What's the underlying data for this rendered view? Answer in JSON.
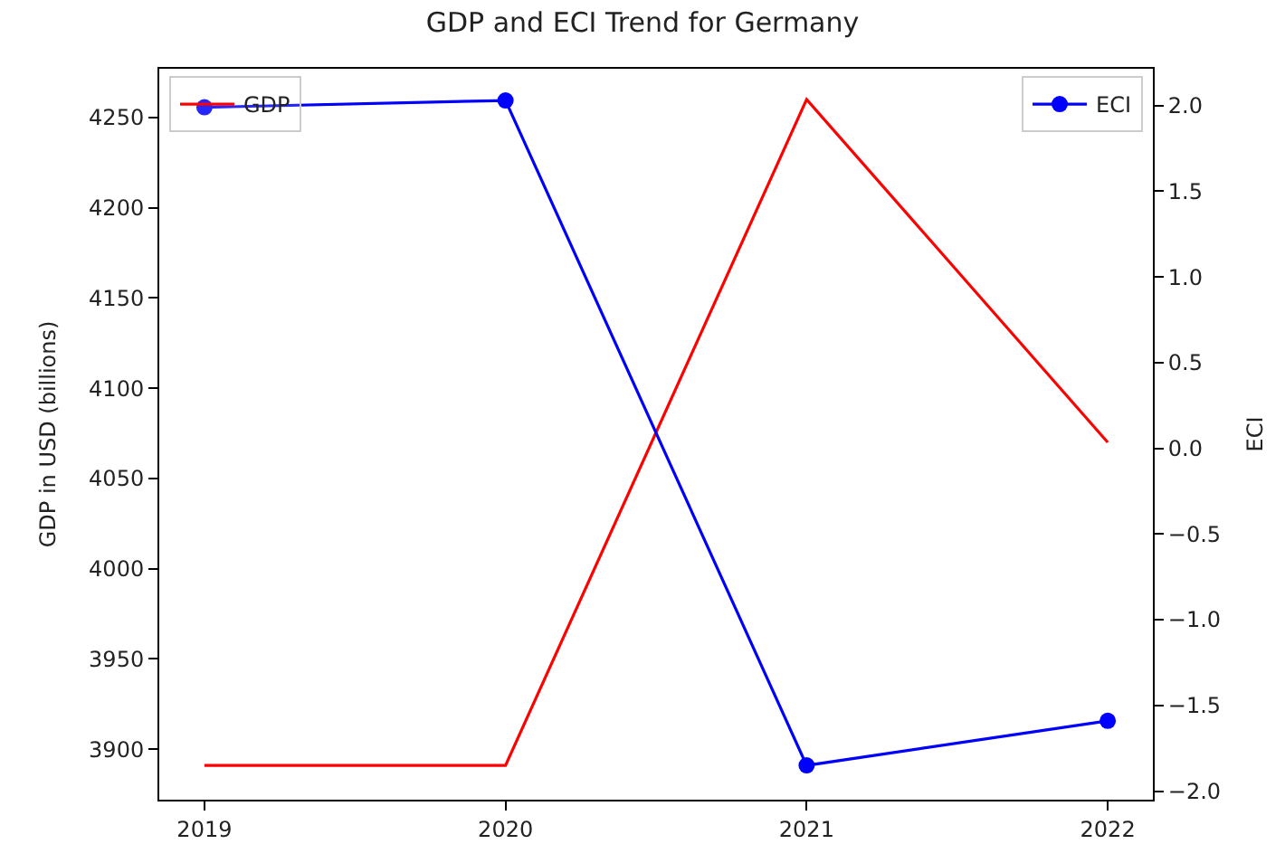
{
  "chart_data": {
    "type": "line",
    "title": "GDP and ECI Trend for Germany",
    "ylabel": "GDP in USD (billions)",
    "y2label": "ECI",
    "x": [
      2019,
      2020,
      2021,
      2022
    ],
    "xlim": [
      2018.85,
      2022.15
    ],
    "xticks": [
      2019,
      2020,
      2021,
      2022
    ],
    "ylim": [
      3872,
      4277
    ],
    "yticks": [
      3900,
      3950,
      4000,
      4050,
      4100,
      4150,
      4200,
      4250
    ],
    "y2lim": [
      -2.05,
      2.215
    ],
    "y2ticks": [
      {
        "value": -2.0,
        "label": "−2.0"
      },
      {
        "value": -1.5,
        "label": "−1.5"
      },
      {
        "value": -1.0,
        "label": "−1.0"
      },
      {
        "value": -0.5,
        "label": "−0.5"
      },
      {
        "value": 0.0,
        "label": "0.0"
      },
      {
        "value": 0.5,
        "label": "0.5"
      },
      {
        "value": 1.0,
        "label": "1.0"
      },
      {
        "value": 1.5,
        "label": "1.5"
      },
      {
        "value": 2.0,
        "label": "2.0"
      }
    ],
    "legend": "top",
    "series": [
      {
        "name": "GDP",
        "color": "#ff0000",
        "values": [
          3891,
          3891,
          4260,
          4070
        ],
        "marker": "none"
      },
      {
        "name": "ECI",
        "color": "#0000ff",
        "values": [
          1.99,
          2.03,
          -1.85,
          -1.59
        ],
        "marker": "circle",
        "axis": "y2"
      }
    ]
  }
}
